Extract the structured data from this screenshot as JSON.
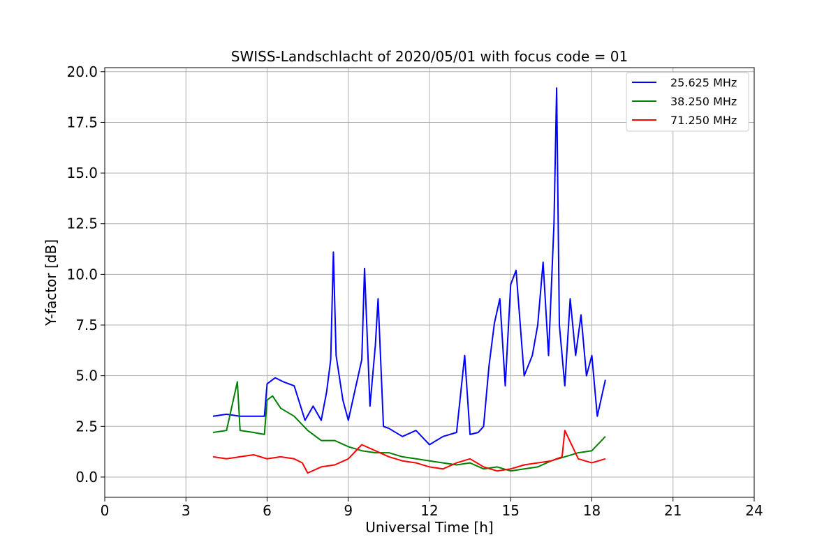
{
  "chart_data": {
    "type": "line",
    "title": "SWISS-Landschlacht of 2020/05/01 with focus code = 01",
    "xlabel": "Universal Time [h]",
    "ylabel": "Y-factor [dB]",
    "xlim": [
      0,
      24
    ],
    "ylim": [
      -1.0,
      20.2
    ],
    "xticks": [
      0,
      3,
      6,
      9,
      12,
      15,
      18,
      21,
      24
    ],
    "xtick_labels": [
      "0",
      "3",
      "6",
      "9",
      "12",
      "15",
      "18",
      "21",
      "24"
    ],
    "yticks": [
      0.0,
      2.5,
      5.0,
      7.5,
      10.0,
      12.5,
      15.0,
      17.5,
      20.0
    ],
    "ytick_labels": [
      "0.0",
      "2.5",
      "5.0",
      "7.5",
      "10.0",
      "12.5",
      "15.0",
      "17.5",
      "20.0"
    ],
    "grid": true,
    "legend_position": "top-right",
    "series": [
      {
        "name": "25.625 MHz",
        "color": "#0000ff",
        "x": [
          4.0,
          4.5,
          5.0,
          5.5,
          5.9,
          6.0,
          6.3,
          6.6,
          7.0,
          7.4,
          7.7,
          8.0,
          8.2,
          8.35,
          8.45,
          8.55,
          8.8,
          9.0,
          9.5,
          9.6,
          9.8,
          10.0,
          10.1,
          10.3,
          10.5,
          11.0,
          11.5,
          12.0,
          12.5,
          13.0,
          13.3,
          13.5,
          13.8,
          14.0,
          14.2,
          14.4,
          14.6,
          14.8,
          15.0,
          15.2,
          15.5,
          15.8,
          16.0,
          16.2,
          16.4,
          16.6,
          16.7,
          16.8,
          17.0,
          17.2,
          17.4,
          17.6,
          17.8,
          18.0,
          18.2,
          18.5
        ],
        "y": [
          3.0,
          3.1,
          3.0,
          3.0,
          3.0,
          4.6,
          4.9,
          4.7,
          4.5,
          2.8,
          3.5,
          2.8,
          4.2,
          5.8,
          11.1,
          6.0,
          3.8,
          2.8,
          5.8,
          10.3,
          3.5,
          6.5,
          8.8,
          2.5,
          2.4,
          2.0,
          2.3,
          1.6,
          2.0,
          2.2,
          6.0,
          2.1,
          2.2,
          2.5,
          5.5,
          7.6,
          8.8,
          4.5,
          9.5,
          10.2,
          5.0,
          6.0,
          7.5,
          10.6,
          6.0,
          12.5,
          19.2,
          7.5,
          4.5,
          8.8,
          6.0,
          8.0,
          5.0,
          6.0,
          3.0,
          4.8
        ]
      },
      {
        "name": "38.250 MHz",
        "color": "#008000",
        "x": [
          4.0,
          4.5,
          4.9,
          5.0,
          5.5,
          5.9,
          6.0,
          6.2,
          6.5,
          7.0,
          7.5,
          8.0,
          8.5,
          9.0,
          9.5,
          10.0,
          10.5,
          11.0,
          11.5,
          12.0,
          12.5,
          13.0,
          13.5,
          14.0,
          14.5,
          15.0,
          15.5,
          16.0,
          16.5,
          17.0,
          17.5,
          18.0,
          18.5
        ],
        "y": [
          2.2,
          2.3,
          4.7,
          2.3,
          2.2,
          2.1,
          3.8,
          4.0,
          3.4,
          3.0,
          2.3,
          1.8,
          1.8,
          1.5,
          1.3,
          1.2,
          1.2,
          1.0,
          0.9,
          0.8,
          0.7,
          0.6,
          0.7,
          0.4,
          0.5,
          0.3,
          0.4,
          0.5,
          0.8,
          1.0,
          1.2,
          1.3,
          2.0
        ]
      },
      {
        "name": "71.250 MHz",
        "color": "#ff0000",
        "x": [
          4.0,
          4.5,
          5.0,
          5.5,
          6.0,
          6.5,
          7.0,
          7.3,
          7.5,
          8.0,
          8.5,
          9.0,
          9.5,
          10.0,
          10.5,
          11.0,
          11.5,
          12.0,
          12.5,
          13.0,
          13.5,
          14.0,
          14.5,
          15.0,
          15.5,
          16.0,
          16.5,
          16.9,
          17.0,
          17.5,
          18.0,
          18.5
        ],
        "y": [
          1.0,
          0.9,
          1.0,
          1.1,
          0.9,
          1.0,
          0.9,
          0.7,
          0.2,
          0.5,
          0.6,
          0.9,
          1.6,
          1.3,
          1.0,
          0.8,
          0.7,
          0.5,
          0.4,
          0.7,
          0.9,
          0.5,
          0.3,
          0.4,
          0.6,
          0.7,
          0.8,
          1.0,
          2.3,
          0.9,
          0.7,
          0.9
        ]
      }
    ]
  }
}
